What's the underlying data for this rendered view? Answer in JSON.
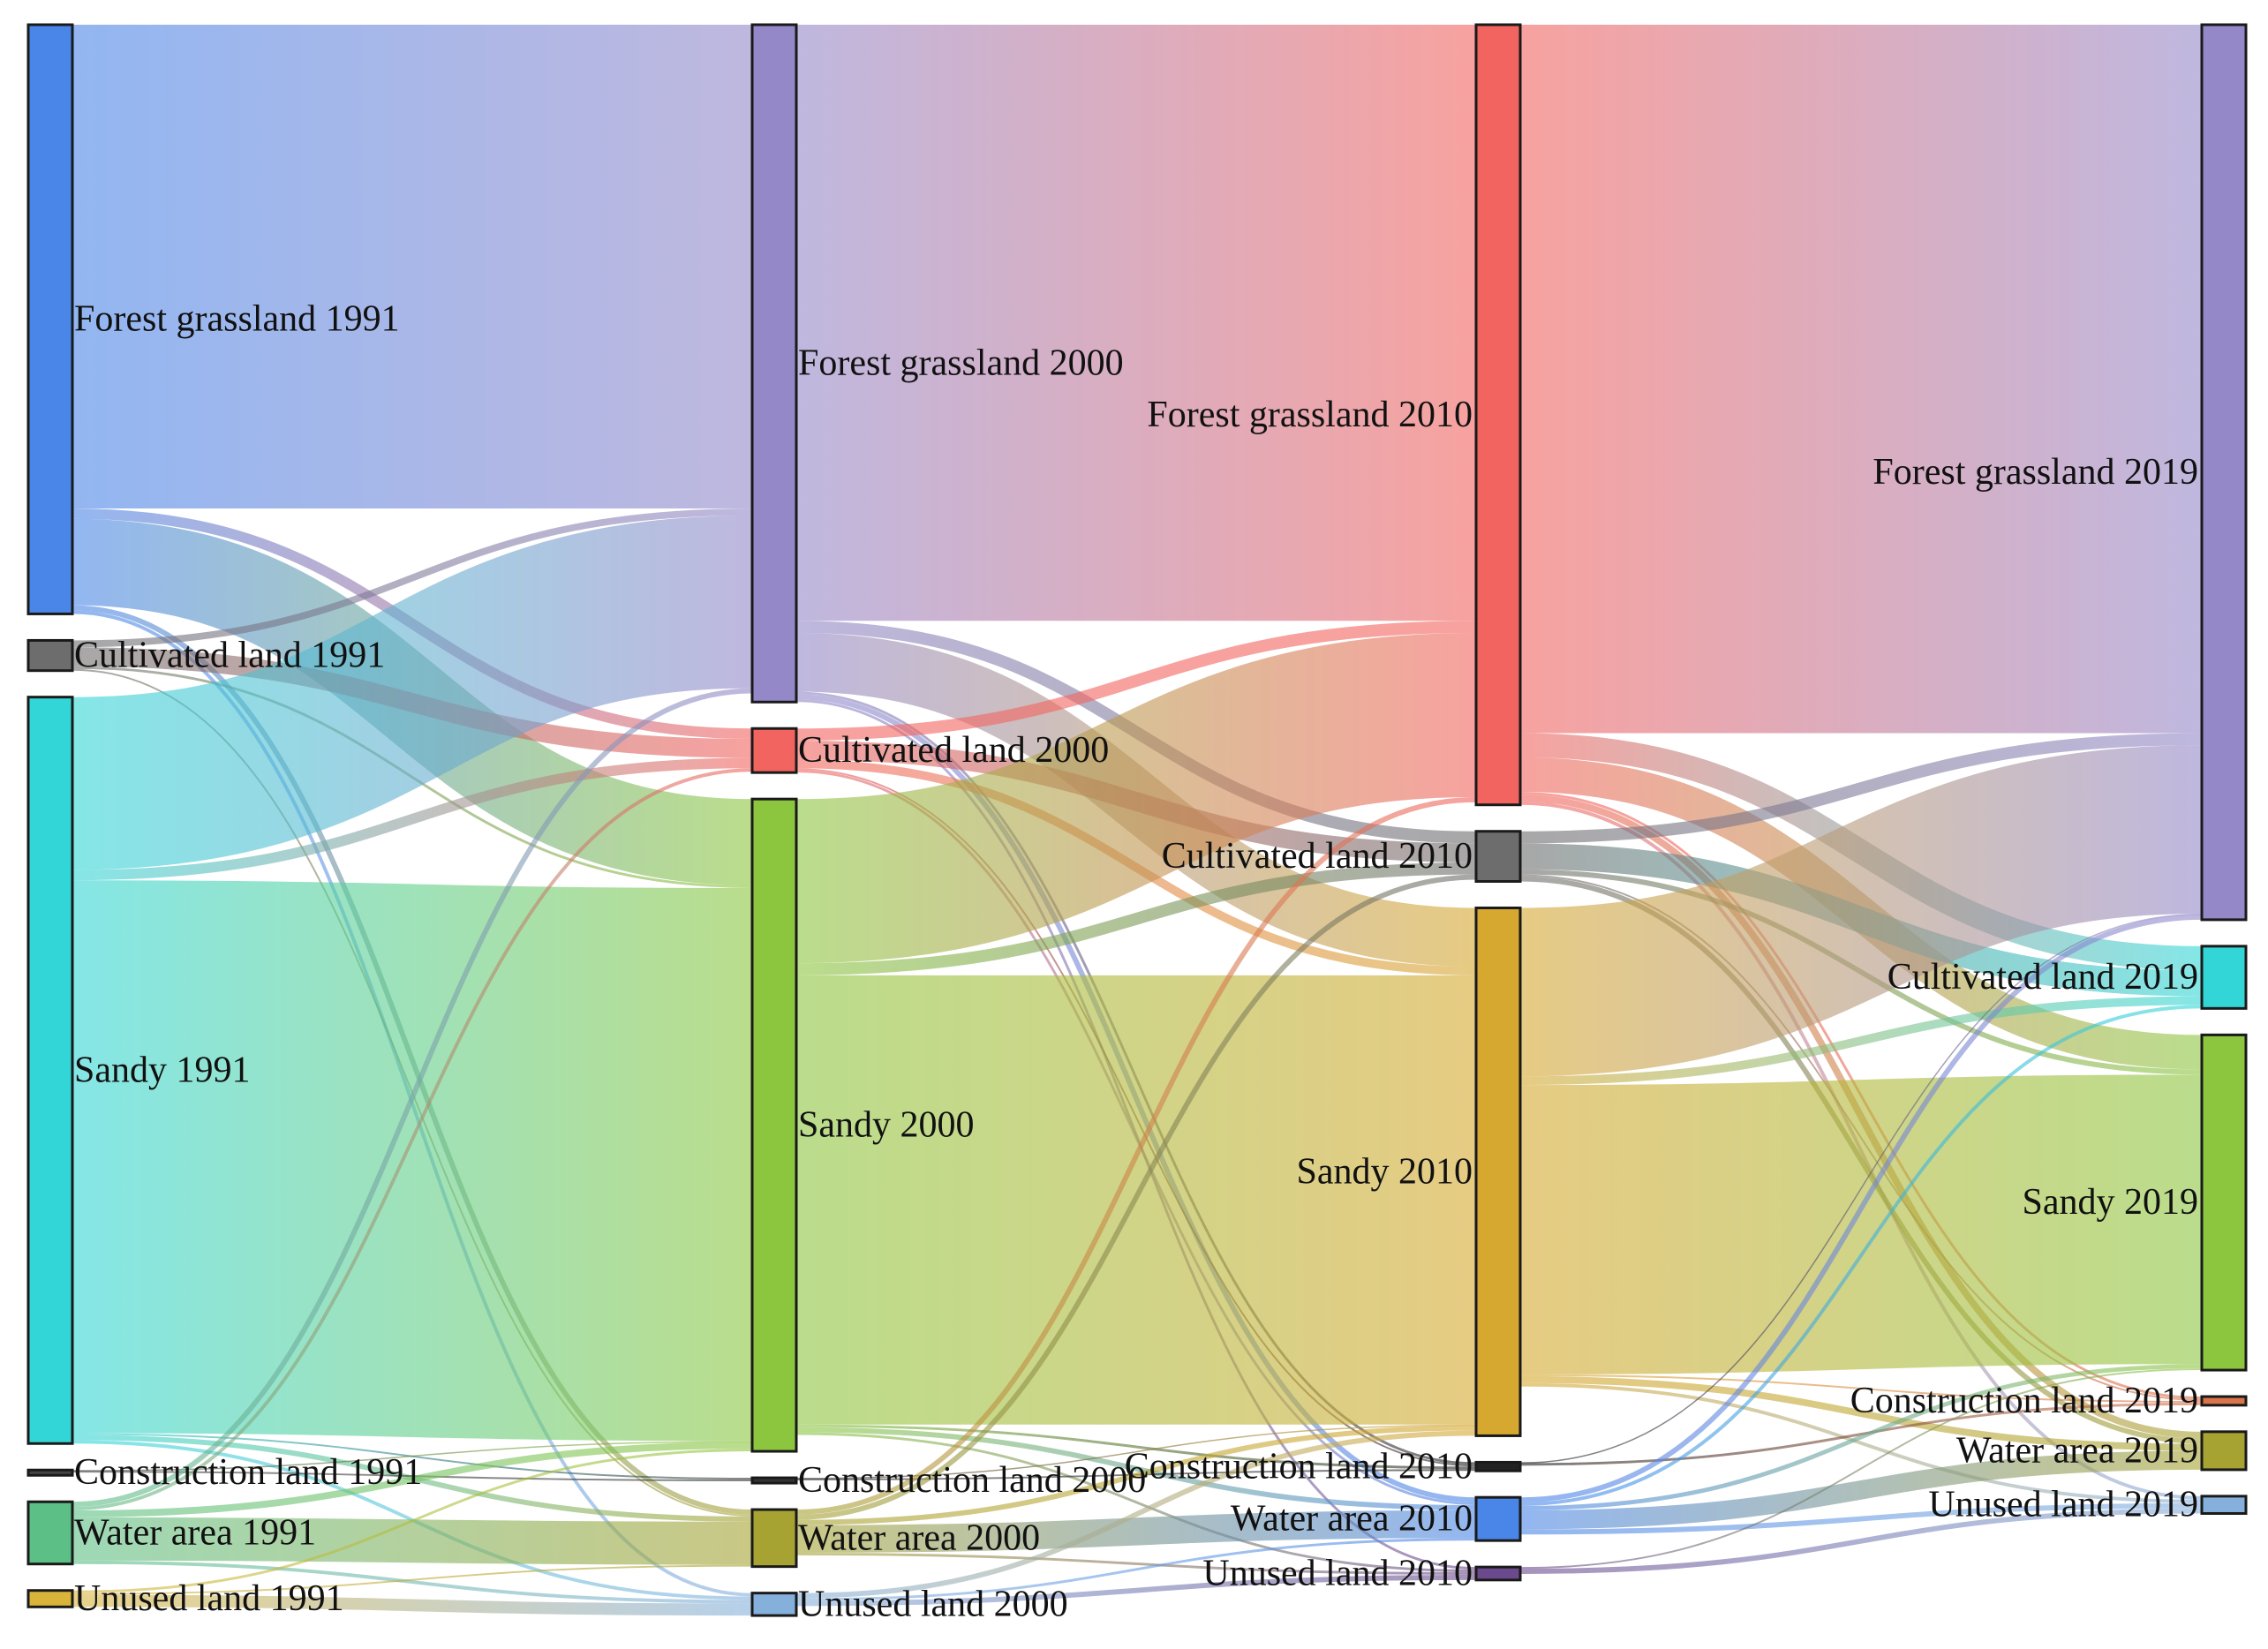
{
  "diagram": {
    "type": "sankey",
    "columns": [
      "1991",
      "2000",
      "2010",
      "2019"
    ],
    "nodes": [
      {
        "id": "fg1991",
        "label": "Forest grassland 1991",
        "column": 0,
        "color": "#4a86e8"
      },
      {
        "id": "cl1991",
        "label": "Cultivated land 1991",
        "column": 0,
        "color": "#6d6d6d"
      },
      {
        "id": "sd1991",
        "label": "Sandy 1991",
        "column": 0,
        "color": "#33d6d6"
      },
      {
        "id": "co1991",
        "label": "Construction land 1991",
        "column": 0,
        "color": "#444444"
      },
      {
        "id": "wa1991",
        "label": "Water area 1991",
        "column": 0,
        "color": "#5cbf85"
      },
      {
        "id": "ul1991",
        "label": "Unused land 1991",
        "column": 0,
        "color": "#d9b43a"
      },
      {
        "id": "fg2000",
        "label": "Forest grassland 2000",
        "column": 1,
        "color": "#9488c9"
      },
      {
        "id": "cl2000",
        "label": "Cultivated land 2000",
        "column": 1,
        "color": "#f2645f"
      },
      {
        "id": "sd2000",
        "label": "Sandy 2000",
        "column": 1,
        "color": "#8cc63f"
      },
      {
        "id": "co2000",
        "label": "Construction land 2000",
        "column": 1,
        "color": "#333333"
      },
      {
        "id": "wa2000",
        "label": "Water area 2000",
        "column": 1,
        "color": "#a6a333"
      },
      {
        "id": "ul2000",
        "label": "Unused land 2000",
        "column": 1,
        "color": "#86b0dc"
      },
      {
        "id": "fg2010",
        "label": "Forest grassland 2010",
        "column": 2,
        "color": "#f2645f"
      },
      {
        "id": "cl2010",
        "label": "Cultivated land 2010",
        "column": 2,
        "color": "#6d6d6d"
      },
      {
        "id": "sd2010",
        "label": "Sandy 2010",
        "column": 2,
        "color": "#d6a830"
      },
      {
        "id": "co2010",
        "label": "Construction land 2010",
        "column": 2,
        "color": "#222222"
      },
      {
        "id": "wa2010",
        "label": "Water area 2010",
        "column": 2,
        "color": "#4a86e8"
      },
      {
        "id": "ul2010",
        "label": "Unused land 2010",
        "column": 2,
        "color": "#6a4a8c"
      },
      {
        "id": "fg2019",
        "label": "Forest grassland 2019",
        "column": 3,
        "color": "#9488c9"
      },
      {
        "id": "cl2019",
        "label": "Cultivated land 2019",
        "column": 3,
        "color": "#33d6d6"
      },
      {
        "id": "sd2019",
        "label": "Sandy 2019",
        "column": 3,
        "color": "#8cc63f"
      },
      {
        "id": "co2019",
        "label": "Construction land 2019",
        "column": 3,
        "color": "#d9734a"
      },
      {
        "id": "wa2019",
        "label": "Water area 2019",
        "column": 3,
        "color": "#a6a333"
      },
      {
        "id": "ul2019",
        "label": "Unused land 2019",
        "column": 3,
        "color": "#86b0dc"
      }
    ],
    "links": [
      {
        "source": "fg1991",
        "target": "fg2000",
        "value": 560
      },
      {
        "source": "fg1991",
        "target": "cl2000",
        "value": 12
      },
      {
        "source": "fg1991",
        "target": "sd2000",
        "value": 100
      },
      {
        "source": "fg1991",
        "target": "wa2000",
        "value": 6
      },
      {
        "source": "fg1991",
        "target": "ul2000",
        "value": 4
      },
      {
        "source": "cl1991",
        "target": "fg2000",
        "value": 8
      },
      {
        "source": "cl1991",
        "target": "cl2000",
        "value": 22
      },
      {
        "source": "cl1991",
        "target": "sd2000",
        "value": 3
      },
      {
        "source": "cl1991",
        "target": "wa2000",
        "value": 2
      },
      {
        "source": "sd1991",
        "target": "fg2000",
        "value": 200
      },
      {
        "source": "sd1991",
        "target": "cl2000",
        "value": 12
      },
      {
        "source": "sd1991",
        "target": "sd2000",
        "value": 640
      },
      {
        "source": "sd1991",
        "target": "co2000",
        "value": 2
      },
      {
        "source": "sd1991",
        "target": "wa2000",
        "value": 6
      },
      {
        "source": "sd1991",
        "target": "ul2000",
        "value": 4
      },
      {
        "source": "co1991",
        "target": "co2000",
        "value": 2
      },
      {
        "source": "co1991",
        "target": "sd2000",
        "value": 1
      },
      {
        "source": "wa1991",
        "target": "fg2000",
        "value": 6
      },
      {
        "source": "wa1991",
        "target": "cl2000",
        "value": 4
      },
      {
        "source": "wa1991",
        "target": "sd2000",
        "value": 8
      },
      {
        "source": "wa1991",
        "target": "wa2000",
        "value": 50
      },
      {
        "source": "wa1991",
        "target": "ul2000",
        "value": 4
      },
      {
        "source": "ul1991",
        "target": "ul2000",
        "value": 14
      },
      {
        "source": "ul1991",
        "target": "sd2000",
        "value": 3
      },
      {
        "source": "ul1991",
        "target": "wa2000",
        "value": 2
      },
      {
        "source": "fg2000",
        "target": "fg2010",
        "value": 690
      },
      {
        "source": "fg2000",
        "target": "cl2010",
        "value": 14
      },
      {
        "source": "fg2000",
        "target": "sd2010",
        "value": 68
      },
      {
        "source": "fg2000",
        "target": "co2010",
        "value": 3
      },
      {
        "source": "fg2000",
        "target": "wa2010",
        "value": 6
      },
      {
        "source": "fg2000",
        "target": "ul2010",
        "value": 3
      },
      {
        "source": "cl2000",
        "target": "fg2010",
        "value": 14
      },
      {
        "source": "cl2000",
        "target": "cl2010",
        "value": 22
      },
      {
        "source": "cl2000",
        "target": "sd2010",
        "value": 10
      },
      {
        "source": "cl2000",
        "target": "co2010",
        "value": 2
      },
      {
        "source": "cl2000",
        "target": "wa2010",
        "value": 3
      },
      {
        "source": "sd2000",
        "target": "fg2010",
        "value": 190
      },
      {
        "source": "sd2000",
        "target": "cl2010",
        "value": 14
      },
      {
        "source": "sd2000",
        "target": "sd2010",
        "value": 520
      },
      {
        "source": "sd2000",
        "target": "co2010",
        "value": 3
      },
      {
        "source": "sd2000",
        "target": "wa2010",
        "value": 6
      },
      {
        "source": "sd2000",
        "target": "ul2010",
        "value": 3
      },
      {
        "source": "co2000",
        "target": "co2010",
        "value": 2
      },
      {
        "source": "co2000",
        "target": "sd2010",
        "value": 1
      },
      {
        "source": "wa2000",
        "target": "fg2010",
        "value": 6
      },
      {
        "source": "wa2000",
        "target": "cl2010",
        "value": 6
      },
      {
        "source": "wa2000",
        "target": "sd2010",
        "value": 6
      },
      {
        "source": "wa2000",
        "target": "wa2010",
        "value": 32
      },
      {
        "source": "wa2000",
        "target": "ul2010",
        "value": 3
      },
      {
        "source": "ul2000",
        "target": "ul2010",
        "value": 6
      },
      {
        "source": "ul2000",
        "target": "sd2010",
        "value": 6
      },
      {
        "source": "ul2000",
        "target": "wa2010",
        "value": 3
      },
      {
        "source": "fg2010",
        "target": "fg2019",
        "value": 820
      },
      {
        "source": "fg2010",
        "target": "cl2019",
        "value": 28
      },
      {
        "source": "fg2010",
        "target": "sd2019",
        "value": 40
      },
      {
        "source": "fg2010",
        "target": "co2019",
        "value": 3
      },
      {
        "source": "fg2010",
        "target": "wa2019",
        "value": 8
      },
      {
        "source": "fg2010",
        "target": "ul2019",
        "value": 4
      },
      {
        "source": "cl2010",
        "target": "fg2019",
        "value": 14
      },
      {
        "source": "cl2010",
        "target": "cl2019",
        "value": 30
      },
      {
        "source": "cl2010",
        "target": "sd2019",
        "value": 6
      },
      {
        "source": "cl2010",
        "target": "co2019",
        "value": 2
      },
      {
        "source": "cl2010",
        "target": "wa2019",
        "value": 6
      },
      {
        "source": "sd2010",
        "target": "fg2019",
        "value": 195
      },
      {
        "source": "sd2010",
        "target": "cl2019",
        "value": 10
      },
      {
        "source": "sd2010",
        "target": "sd2019",
        "value": 335
      },
      {
        "source": "sd2010",
        "target": "co2019",
        "value": 2
      },
      {
        "source": "sd2010",
        "target": "wa2019",
        "value": 8
      },
      {
        "source": "sd2010",
        "target": "ul2019",
        "value": 4
      },
      {
        "source": "co2010",
        "target": "co2019",
        "value": 3
      },
      {
        "source": "co2010",
        "target": "fg2019",
        "value": 1
      },
      {
        "source": "wa2010",
        "target": "fg2019",
        "value": 6
      },
      {
        "source": "wa2010",
        "target": "cl2019",
        "value": 4
      },
      {
        "source": "wa2010",
        "target": "sd2019",
        "value": 5
      },
      {
        "source": "wa2010",
        "target": "wa2019",
        "value": 22
      },
      {
        "source": "wa2010",
        "target": "ul2019",
        "value": 6
      },
      {
        "source": "ul2010",
        "target": "ul2019",
        "value": 6
      },
      {
        "source": "ul2010",
        "target": "sd2019",
        "value": 2
      }
    ]
  }
}
